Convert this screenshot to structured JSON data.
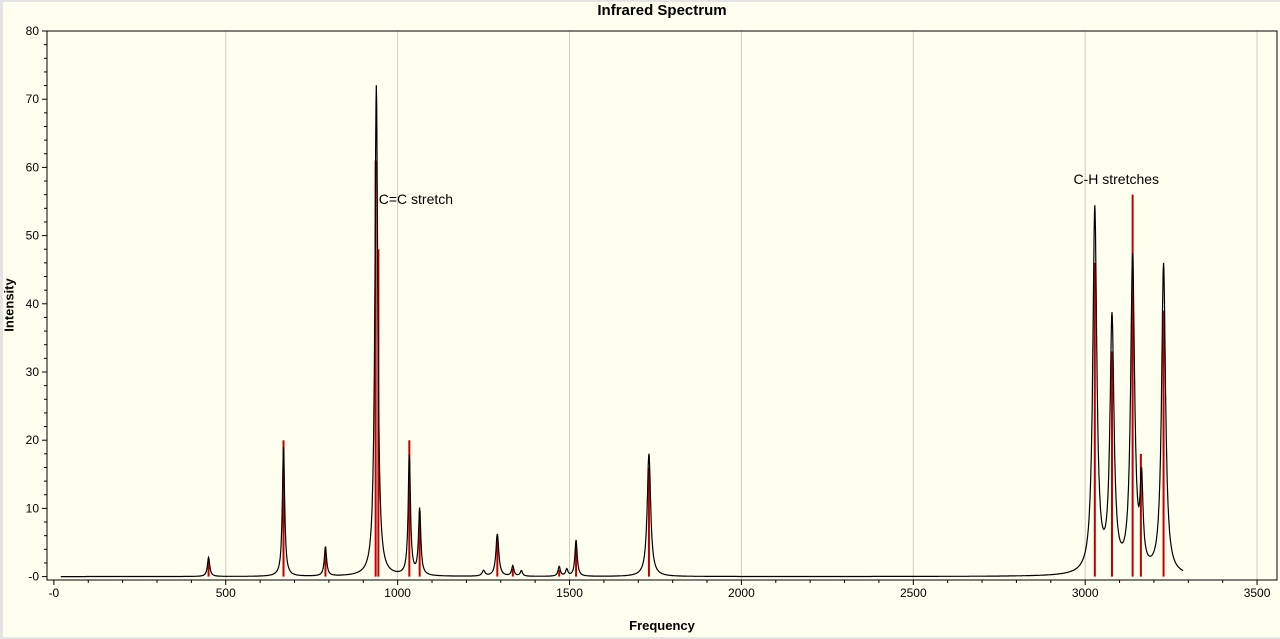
{
  "chart_data": {
    "type": "line",
    "title": "Infrared Spectrum",
    "xlabel": "Frequency",
    "ylabel": "Intensity",
    "xlim": [
      -20,
      3558
    ],
    "ylim": [
      -0.5,
      80
    ],
    "x_major_ticks": [
      0,
      500,
      1000,
      1500,
      2000,
      2500,
      3000,
      3500
    ],
    "x_tick_labels": [
      "-0",
      "500",
      "1000",
      "1500",
      "2000",
      "2500",
      "3000",
      "3500"
    ],
    "x_minor_step": 100,
    "y_major_ticks": [
      0,
      10,
      20,
      30,
      40,
      50,
      60,
      70,
      80
    ],
    "y_tick_labels": [
      "-0",
      "10",
      "20",
      "30",
      "40",
      "50",
      "60",
      "70",
      "80"
    ],
    "y_minor_step": 2,
    "grid": "vertical-major-only",
    "legend": "none",
    "background_color": "#FFFFEF",
    "grid_color": "#CCCCBE",
    "axis_color": "#000000",
    "annotations": [
      {
        "text": "C=C stretch",
        "x": 945,
        "y": 56.5
      },
      {
        "text": "C-H stretches",
        "x": 2966,
        "y": 59.5
      }
    ],
    "series": [
      {
        "name": "ir-transition-sticks",
        "type": "stick",
        "color": "#C00000",
        "points": [
          [
            450,
            2.3
          ],
          [
            668,
            20
          ],
          [
            790,
            3.8
          ],
          [
            936,
            61
          ],
          [
            944,
            48
          ],
          [
            1034,
            20
          ],
          [
            1064,
            9.5
          ],
          [
            1290,
            5.8
          ],
          [
            1335,
            1.2
          ],
          [
            1470,
            1.0
          ],
          [
            1519,
            4.7
          ],
          [
            1731,
            16
          ],
          [
            3028,
            46
          ],
          [
            3078,
            33
          ],
          [
            3138,
            56
          ],
          [
            3162,
            18
          ],
          [
            3228,
            39
          ]
        ]
      },
      {
        "name": "broadened-spectrum-curve",
        "type": "lorentzian-sum",
        "color": "#000000",
        "x_range": [
          20,
          3285
        ],
        "components": [
          [
            450,
            2.8,
            4
          ],
          [
            668,
            19,
            4
          ],
          [
            790,
            4.3,
            4
          ],
          [
            938,
            72,
            5
          ],
          [
            1034,
            17.5,
            4
          ],
          [
            1064,
            9.7,
            4
          ],
          [
            1250,
            0.8,
            5
          ],
          [
            1290,
            6.2,
            5
          ],
          [
            1335,
            1.5,
            4
          ],
          [
            1360,
            0.8,
            4
          ],
          [
            1470,
            1.4,
            4
          ],
          [
            1492,
            1.0,
            4
          ],
          [
            1519,
            5.3,
            4
          ],
          [
            1731,
            18,
            6
          ],
          [
            3028,
            53.5,
            7
          ],
          [
            3078,
            37,
            7
          ],
          [
            3138,
            46,
            7
          ],
          [
            3164,
            12,
            5
          ],
          [
            3228,
            45.5,
            7
          ]
        ]
      }
    ]
  }
}
